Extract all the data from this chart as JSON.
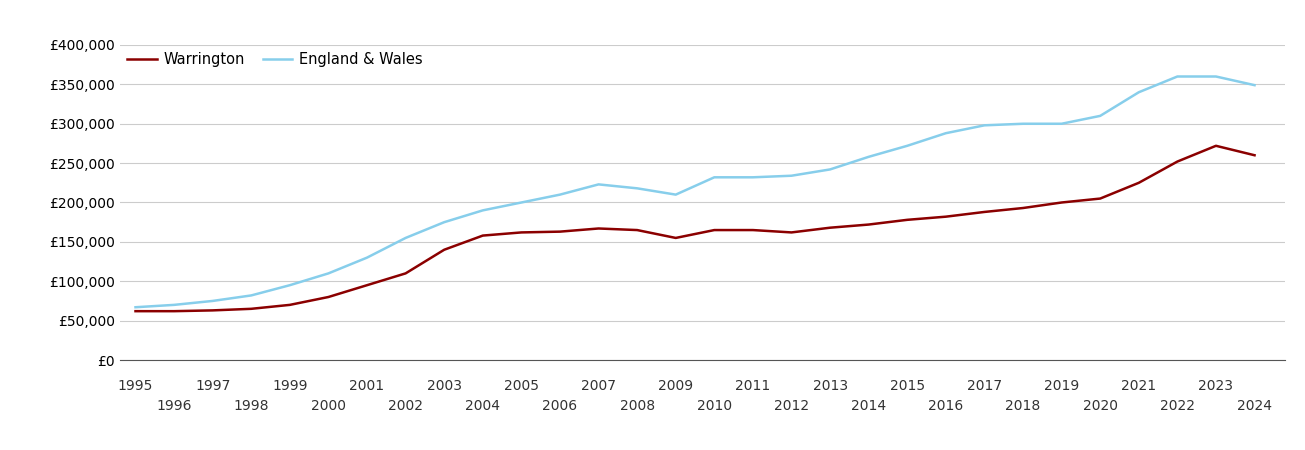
{
  "years": [
    1995,
    1996,
    1997,
    1998,
    1999,
    2000,
    2001,
    2002,
    2003,
    2004,
    2005,
    2006,
    2007,
    2008,
    2009,
    2010,
    2011,
    2012,
    2013,
    2014,
    2015,
    2016,
    2017,
    2018,
    2019,
    2020,
    2021,
    2022,
    2023,
    2024
  ],
  "warrington": [
    62000,
    62000,
    63000,
    65000,
    70000,
    80000,
    95000,
    110000,
    140000,
    158000,
    162000,
    163000,
    167000,
    165000,
    155000,
    165000,
    165000,
    162000,
    168000,
    172000,
    178000,
    182000,
    188000,
    193000,
    200000,
    205000,
    225000,
    252000,
    272000,
    260000
  ],
  "england_wales": [
    67000,
    70000,
    75000,
    82000,
    95000,
    110000,
    130000,
    155000,
    175000,
    190000,
    200000,
    210000,
    223000,
    218000,
    210000,
    232000,
    232000,
    234000,
    242000,
    258000,
    272000,
    288000,
    298000,
    300000,
    300000,
    310000,
    340000,
    360000,
    360000,
    349000
  ],
  "warrington_color": "#8B0000",
  "england_wales_color": "#87CEEB",
  "warrington_label": "Warrington",
  "england_wales_label": "England & Wales",
  "ylim": [
    0,
    400000
  ],
  "yticks": [
    0,
    50000,
    100000,
    150000,
    200000,
    250000,
    300000,
    350000,
    400000
  ],
  "ytick_labels": [
    "£0",
    "£50,000",
    "£100,000",
    "£150,000",
    "£200,000",
    "£250,000",
    "£300,000",
    "£350,000",
    "£400,000"
  ],
  "background_color": "#ffffff",
  "grid_color": "#cccccc",
  "line_width": 1.8,
  "legend_fontsize": 10.5,
  "tick_fontsize": 10,
  "xlim_left": 1994.6,
  "xlim_right": 2024.8
}
